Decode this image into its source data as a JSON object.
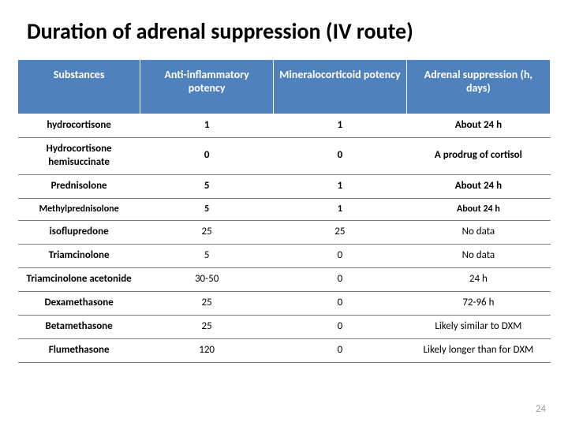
{
  "title": "Duration of adrenal suppression (IV route)",
  "slide_number": "24",
  "table": {
    "header_bg": "#4f81bd",
    "header_fg": "#ffffff",
    "columns": [
      "Substances",
      "Anti-inflammatory potency",
      "Mineralocorticoid potency",
      "Adrenal suppression (h, days)"
    ],
    "rows": [
      {
        "sub": "hydrocortisone",
        "ai": "1",
        "min": "1",
        "adr": "About 24 h",
        "bold": true
      },
      {
        "sub": "Hydrocortisone hemisuccinate",
        "ai": "0",
        "min": "0",
        "adr": "A prodrug of cortisol",
        "bold": true
      },
      {
        "sub": "Prednisolone",
        "ai": "5",
        "min": "1",
        "adr": "About 24 h",
        "bold": true
      },
      {
        "sub": "Methylprednisolone",
        "ai": "5",
        "min": "1",
        "adr": "About 24 h",
        "bold": true,
        "small": true
      },
      {
        "sub": "isoflupredone",
        "ai": "25",
        "min": "25",
        "adr": "No data",
        "bold": false
      },
      {
        "sub": "Triamcinolone",
        "ai": "5",
        "min": "0",
        "adr": "No data",
        "bold": false
      },
      {
        "sub": "Triamcinolone acetonide",
        "ai": "30-50",
        "min": "0",
        "adr": "24 h",
        "bold": false
      },
      {
        "sub": "Dexamethasone",
        "ai": "25",
        "min": "0",
        "adr": "72-96 h",
        "bold": false
      },
      {
        "sub": "Betamethasone",
        "ai": "25",
        "min": "0",
        "adr": "Likely similar to DXM",
        "bold": false
      },
      {
        "sub": "Flumethasone",
        "ai": "120",
        "min": "0",
        "adr": "Likely longer than for DXM",
        "bold": false
      }
    ]
  }
}
